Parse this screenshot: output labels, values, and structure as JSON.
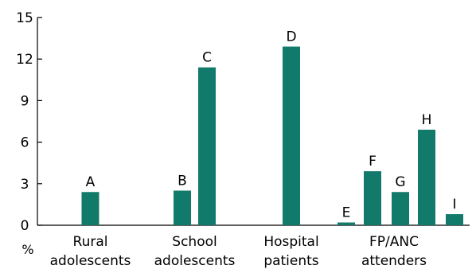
{
  "chart_data": {
    "type": "bar",
    "ylabel": "%",
    "ylim": [
      0,
      15
    ],
    "yticks": [
      0,
      3,
      6,
      9,
      12,
      15
    ],
    "grid": false,
    "bar_color": "#127a6a",
    "groups": [
      {
        "label_lines": [
          "Rural",
          "adolescents"
        ],
        "bars": [
          {
            "label": "A",
            "value": 2.4
          }
        ]
      },
      {
        "label_lines": [
          "School",
          "adolescents"
        ],
        "bars": [
          {
            "label": "B",
            "value": 2.5
          },
          {
            "label": "C",
            "value": 11.4
          }
        ]
      },
      {
        "label_lines": [
          "Hospital",
          "patients"
        ],
        "bars": [
          {
            "label": "D",
            "value": 12.9
          }
        ]
      },
      {
        "label_lines": [
          "FP/ANC",
          "attenders"
        ],
        "bars": [
          {
            "label": "E",
            "value": 0.2
          },
          {
            "label": "F",
            "value": 3.9
          },
          {
            "label": "G",
            "value": 2.4
          },
          {
            "label": "H",
            "value": 6.9
          },
          {
            "label": "I",
            "value": 0.8
          }
        ]
      }
    ]
  }
}
